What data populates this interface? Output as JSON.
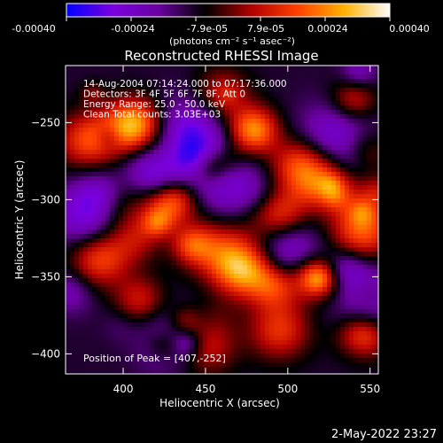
{
  "colorbar": {
    "ticks": [
      "-0.00040",
      "-0.00024",
      "-7.9e-05",
      "7.9e-05",
      "0.00024",
      "0.00040"
    ],
    "range": [
      -0.0004,
      0.0004
    ],
    "unit_label": "(photons cm⁻² s⁻¹ asec⁻²)",
    "gradient": [
      "#0000ff",
      "#7a00e0",
      "#6a00a0",
      "#000000",
      "#b00000",
      "#ff4000",
      "#ffb000",
      "#ffffff"
    ]
  },
  "chart_data": {
    "type": "heatmap",
    "title": "Reconstructed RHESSI Image",
    "xlabel": "Heliocentric X (arcsec)",
    "ylabel": "Heliocentric Y (arcsec)",
    "xlim": [
      365,
      555
    ],
    "ylim": [
      -413,
      -213
    ],
    "x_ticks": [
      400,
      450,
      500,
      550
    ],
    "y_ticks": [
      -250,
      -300,
      -350,
      -400
    ],
    "annotations": [
      "14-Aug-2004 07:14:24.000 to 07:17:36.000",
      "Detectors: 3F 4F 5F 6F 7F 8F, Att 0",
      "Energy Range: 25.0 - 50.0 keV",
      "Clean   Total counts: 3.03E+03"
    ],
    "peak_label": "Position of Peak = [407,-252]",
    "peak": [
      407,
      -252
    ],
    "hotspots": [
      {
        "x": 407,
        "y": -252,
        "value": 0.0004
      },
      {
        "x": 479,
        "y": -255,
        "value": 0.00035
      },
      {
        "x": 472,
        "y": -345,
        "value": 0.00036
      },
      {
        "x": 545,
        "y": -322,
        "value": 0.0003
      },
      {
        "x": 508,
        "y": -278,
        "value": 0.00028
      },
      {
        "x": 528,
        "y": -290,
        "value": 0.00024
      },
      {
        "x": 432,
        "y": -300,
        "value": 0.00022
      },
      {
        "x": 454,
        "y": -330,
        "value": 0.00022
      },
      {
        "x": 386,
        "y": -338,
        "value": 0.00026
      },
      {
        "x": 495,
        "y": -385,
        "value": 0.00022
      },
      {
        "x": 450,
        "y": -395,
        "value": 0.0002
      },
      {
        "x": 410,
        "y": -365,
        "value": 0.00018
      },
      {
        "x": 377,
        "y": -262,
        "value": 0.00022
      },
      {
        "x": 540,
        "y": -235,
        "value": 0.0002
      },
      {
        "x": 460,
        "y": -232,
        "value": 0.00018
      },
      {
        "x": 520,
        "y": -350,
        "value": 0.00026
      },
      {
        "x": 545,
        "y": -390,
        "value": 0.00028
      },
      {
        "x": 396,
        "y": -305,
        "value": 0.00015
      },
      {
        "x": 490,
        "y": -310,
        "value": 0.00016
      }
    ],
    "coldspots": [
      {
        "x": 440,
        "y": -260,
        "value": -0.00026
      },
      {
        "x": 420,
        "y": -280,
        "value": -0.00022
      },
      {
        "x": 380,
        "y": -310,
        "value": -0.00024
      },
      {
        "x": 530,
        "y": -260,
        "value": -0.0002
      },
      {
        "x": 500,
        "y": -330,
        "value": -0.00018
      },
      {
        "x": 430,
        "y": -390,
        "value": -0.0002
      },
      {
        "x": 470,
        "y": -295,
        "value": -0.00016
      },
      {
        "x": 545,
        "y": -355,
        "value": -0.00014
      }
    ]
  },
  "footer": {
    "date": "2-May-2022 23:27"
  }
}
